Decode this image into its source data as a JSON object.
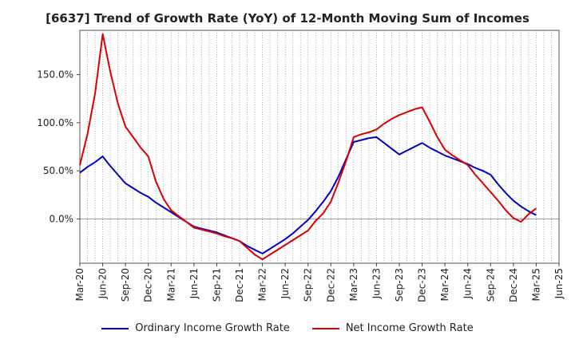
{
  "chart_data": {
    "type": "line",
    "title": "[6637]  Trend of Growth Rate (YoY) of 12-Month Moving Sum of Incomes",
    "x": [
      "Mar-20",
      "Apr-20",
      "May-20",
      "Jun-20",
      "Jul-20",
      "Aug-20",
      "Sep-20",
      "Oct-20",
      "Nov-20",
      "Dec-20",
      "Jan-21",
      "Feb-21",
      "Mar-21",
      "Apr-21",
      "May-21",
      "Jun-21",
      "Jul-21",
      "Aug-21",
      "Sep-21",
      "Oct-21",
      "Nov-21",
      "Dec-21",
      "Jan-22",
      "Feb-22",
      "Mar-22",
      "Apr-22",
      "May-22",
      "Jun-22",
      "Jul-22",
      "Aug-22",
      "Sep-22",
      "Oct-22",
      "Nov-22",
      "Dec-22",
      "Jan-23",
      "Feb-23",
      "Mar-23",
      "Apr-23",
      "May-23",
      "Jun-23",
      "Jul-23",
      "Aug-23",
      "Sep-23",
      "Oct-23",
      "Nov-23",
      "Dec-23",
      "Jan-24",
      "Feb-24",
      "Mar-24",
      "Apr-24",
      "May-24",
      "Jun-24",
      "Jul-24",
      "Aug-24",
      "Sep-24",
      "Oct-24",
      "Nov-24",
      "Dec-24",
      "Jan-25",
      "Feb-25",
      "Mar-25"
    ],
    "x_tick_labels": [
      "Mar-20",
      "Jun-20",
      "Sep-20",
      "Dec-20",
      "Mar-21",
      "Jun-21",
      "Sep-21",
      "Dec-21",
      "Mar-22",
      "Jun-22",
      "Sep-22",
      "Dec-22",
      "Mar-23",
      "Jun-23",
      "Sep-23",
      "Dec-23",
      "Mar-24",
      "Jun-24",
      "Sep-24",
      "Dec-24",
      "Mar-25",
      "Jun-25"
    ],
    "y_ticks": [
      0,
      50,
      100,
      150
    ],
    "y_tick_labels": [
      "0.0%",
      "50.0%",
      "100.0%",
      "150.0%"
    ],
    "ylim": [
      -46,
      196
    ],
    "x_range": [
      "Mar-20",
      "Jun-25"
    ],
    "grid": "vertical dotted",
    "legend_position": "bottom",
    "series": [
      {
        "name": "Ordinary Income Growth Rate",
        "color": "#0000cc",
        "values": [
          48,
          54,
          59,
          65,
          55,
          46,
          37,
          32,
          27,
          23,
          17,
          12,
          7,
          2,
          -3,
          -8,
          -10,
          -12,
          -14,
          -17,
          -20,
          -23,
          -28,
          -32,
          -36,
          -31,
          -26,
          -21,
          -15,
          -8,
          -1,
          8,
          18,
          29,
          44,
          62,
          80,
          82,
          84,
          85,
          79,
          73,
          67,
          71,
          75,
          79,
          74,
          70,
          66,
          63,
          60,
          57,
          53,
          50,
          46,
          36,
          27,
          19,
          13,
          8,
          4
        ]
      },
      {
        "name": "Net Income Growth Rate",
        "color": "#dd0000",
        "values": [
          56,
          88,
          130,
          192,
          153,
          120,
          96,
          85,
          74,
          65,
          39,
          21,
          9,
          3,
          -3,
          -9,
          -11,
          -13,
          -15,
          -18,
          -20,
          -23,
          -30,
          -37,
          -42,
          -37,
          -32,
          -27,
          -22,
          -17,
          -12,
          -2,
          6,
          18,
          38,
          60,
          85,
          88,
          90,
          93,
          99,
          104,
          108,
          111,
          114,
          116,
          101,
          85,
          72,
          66,
          61,
          56,
          46,
          37,
          28,
          19,
          9,
          1,
          -3,
          5,
          11
        ]
      }
    ]
  }
}
